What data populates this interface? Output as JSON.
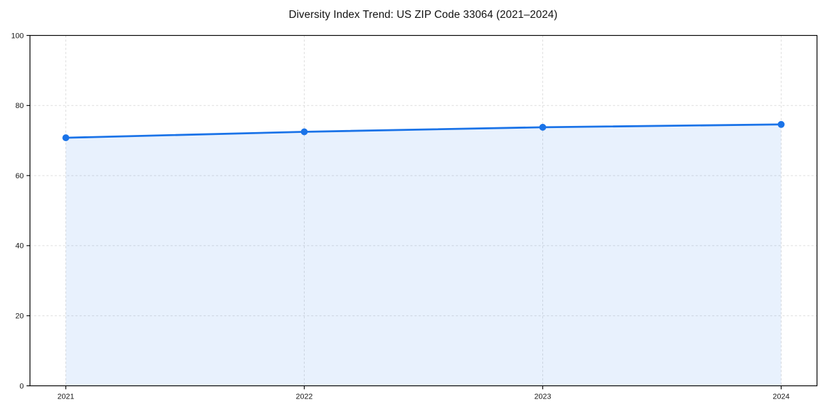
{
  "chart_data": {
    "type": "area",
    "title": "Diversity Index Trend: US ZIP Code 33064 (2021–2024)",
    "categories": [
      "2021",
      "2022",
      "2023",
      "2024"
    ],
    "series": [
      {
        "name": "Diversity Index",
        "values": [
          70.8,
          72.5,
          73.8,
          74.6
        ]
      }
    ],
    "xlabel": "",
    "ylabel": "",
    "ylim": [
      0,
      100
    ],
    "yticks": [
      0,
      20,
      40,
      60,
      80,
      100
    ],
    "grid": true,
    "grid_style": "dashed",
    "legend": "none",
    "colors": {
      "line": "#1a73e8",
      "marker": "#1a73e8",
      "fill": "rgba(26,115,232,0.10)",
      "gridline": "#dcdcdc",
      "spine": "#000000",
      "tick_label": "#1a1a1a",
      "background": "#ffffff"
    }
  }
}
